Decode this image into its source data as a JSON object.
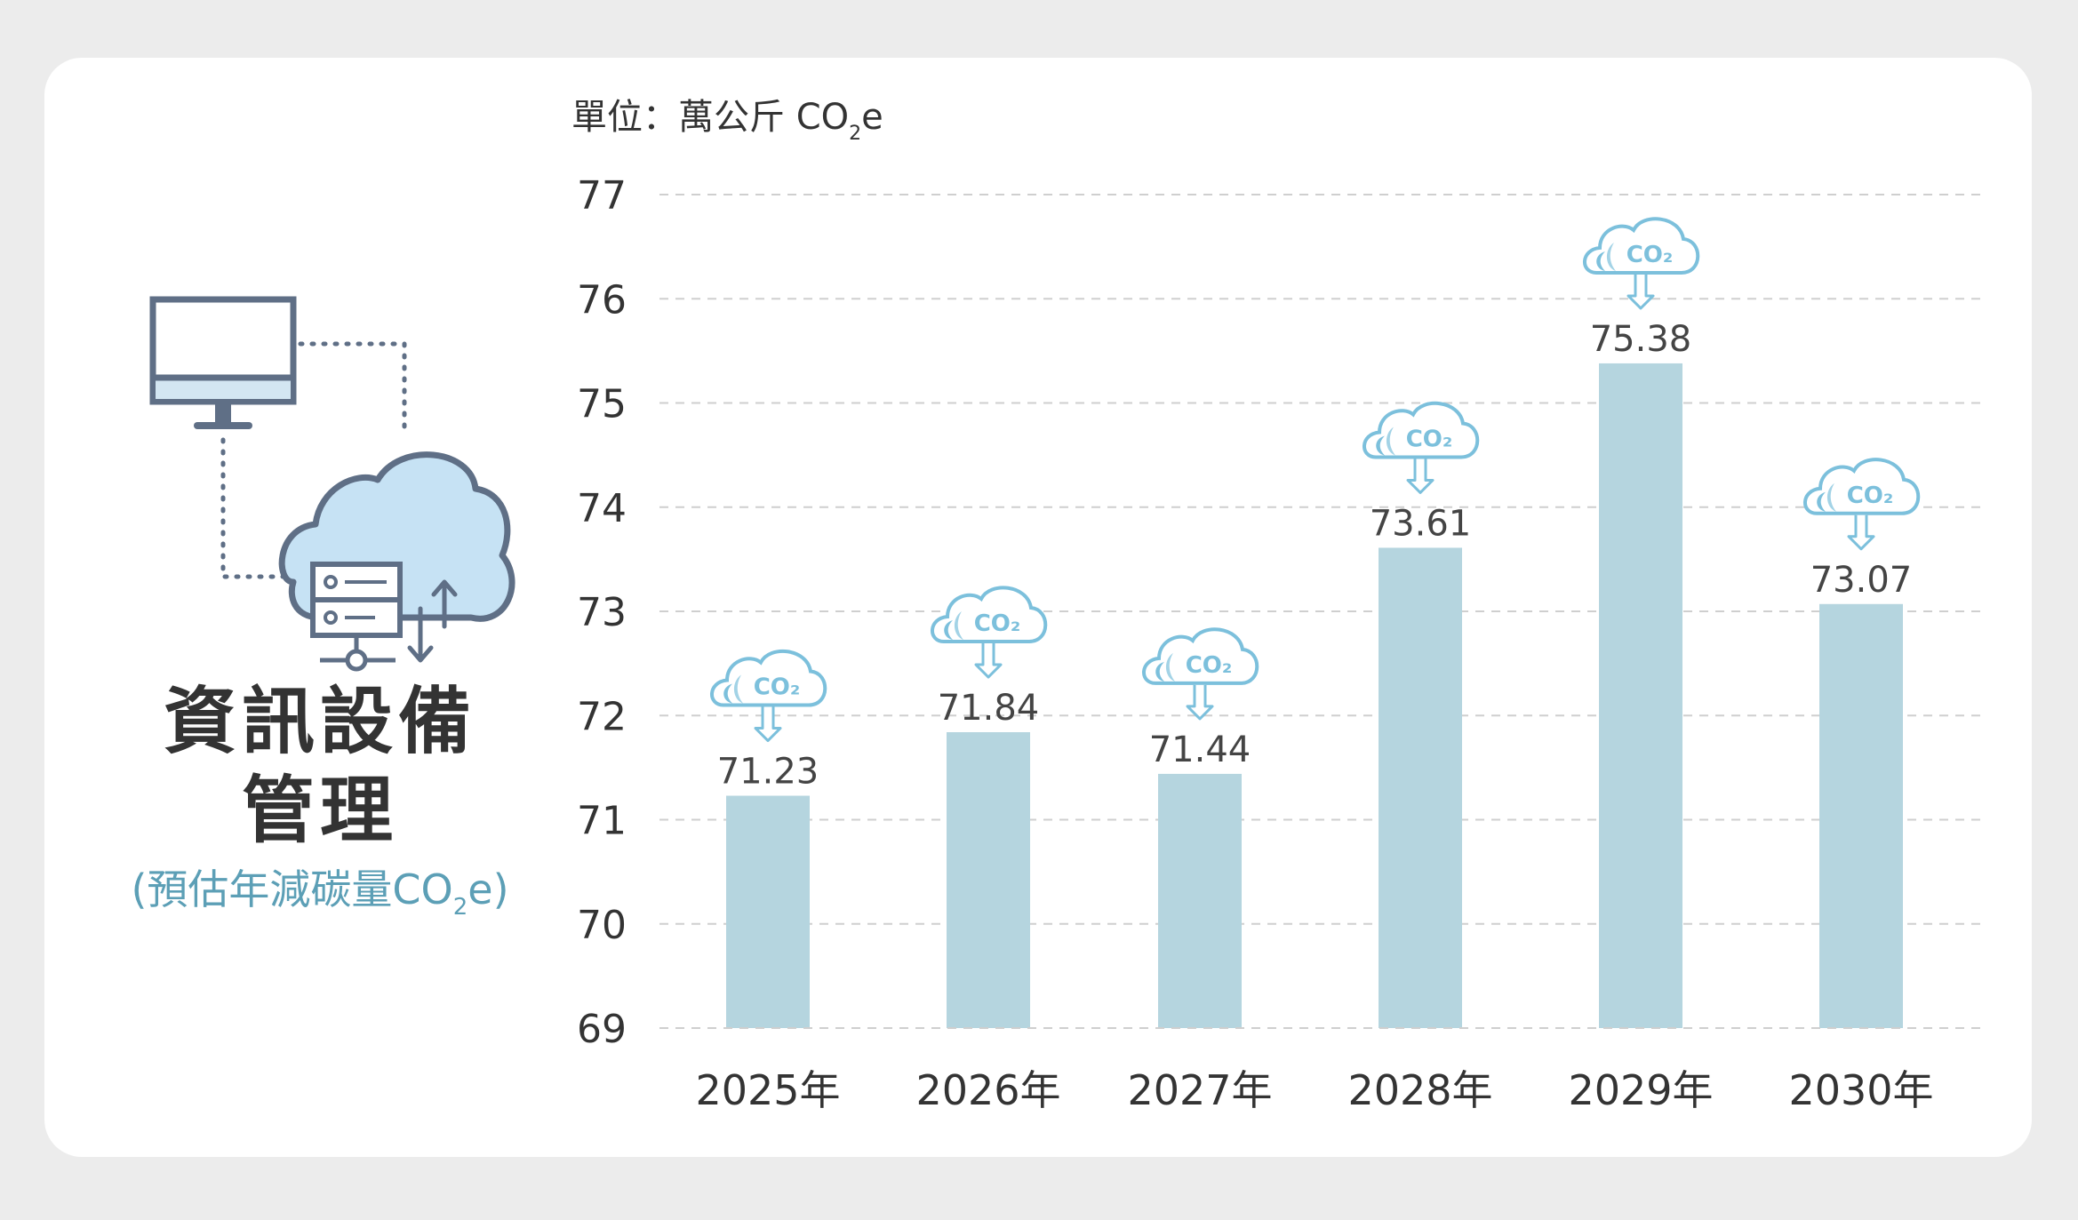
{
  "left_panel": {
    "title_line1": "資訊設備",
    "title_line2": "管理",
    "subtitle_prefix": "(預估年減碳量CO",
    "subtitle_sub": "2",
    "subtitle_suffix": "e)"
  },
  "unit_label": {
    "prefix": "單位：萬公斤 CO",
    "sub": "2",
    "suffix": "e"
  },
  "icons": {
    "illustration": "computer-cloud-server-icon",
    "bar_marker": "co2-cloud-icon",
    "bar_marker_text": "CO₂"
  },
  "colors": {
    "bar": "#b5d5df",
    "icon_accent": "#7cc0dc",
    "subtitle": "#5c9fb6",
    "grid": "#cfcfcf"
  },
  "chart_data": {
    "type": "bar",
    "categories": [
      "2025年",
      "2026年",
      "2027年",
      "2028年",
      "2029年",
      "2030年"
    ],
    "values": [
      71.23,
      71.84,
      71.44,
      73.61,
      75.38,
      73.07
    ],
    "value_labels": [
      "71.23",
      "71.84",
      "71.44",
      "73.61",
      "75.38",
      "73.07"
    ],
    "ylim": [
      69,
      77
    ],
    "yticks": [
      "69",
      "70",
      "71",
      "72",
      "73",
      "74",
      "75",
      "76",
      "77"
    ],
    "grid": true,
    "grid_style": "dashed"
  }
}
